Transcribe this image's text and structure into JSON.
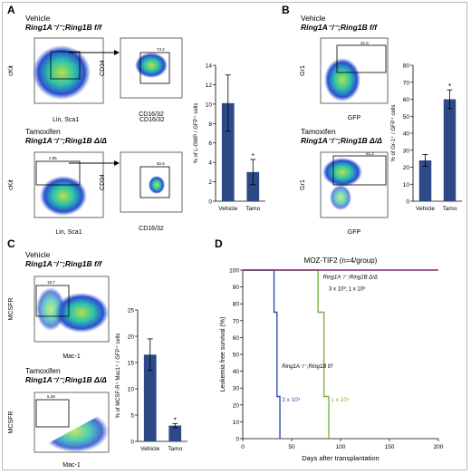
{
  "panel_labels": [
    "A",
    "B",
    "C",
    "D"
  ],
  "panel_a": {
    "vehicle": {
      "title": "Vehicle",
      "genotype": "Ring1A⁻/⁻;Ring1B f/f"
    },
    "tamoxifen": {
      "title": "Tamoxifen",
      "genotype": "Ring1A⁻/⁻;Ring1B Δ/Δ"
    },
    "flow_left": {
      "xlabel": "Lin, Sca1",
      "ylabel": "cKit"
    },
    "flow_right": {
      "xlabel": "CD16/32",
      "ylabel": "CD34"
    },
    "gate_vehicle": "74.2",
    "gate_tamo_left": "2.85",
    "gate_tamo_right": "82.6"
  },
  "panel_b": {
    "vehicle": {
      "title": "Vehicle",
      "genotype": "Ring1A⁻/⁻;Ring1B f/f"
    },
    "tamoxifen": {
      "title": "Tamoxifen",
      "genotype": "Ring1A⁻/⁻;Ring1B Δ/Δ"
    },
    "flow": {
      "xlabel": "GFP",
      "ylabel": "Gr1"
    },
    "gate_vehicle": "21.6",
    "gate_tamo": "61.2"
  },
  "panel_c": {
    "vehicle": {
      "title": "Vehicle",
      "genotype": "Ring1A⁻/⁻;Ring1B f/f"
    },
    "tamoxifen": {
      "title": "Tamoxifen",
      "genotype": "Ring1A⁻/⁻;Ring1B Δ/Δ"
    },
    "flow": {
      "xlabel": "Mac-1",
      "ylabel": "MCSFR"
    },
    "gate_vehicle": "18.7",
    "gate_tamo": "5.28"
  },
  "panel_d": {
    "title": "MOZ-TIF2 (n=4/group)",
    "annot_top": "Ring1A⁻/⁻;Ring1B Δ/Δ",
    "annot_top2": "3 x 10³; 1 x 10³",
    "annot_mid": "Ring1A⁻/⁻;Ring1B f/f",
    "annot_blue": "3 x 10³",
    "annot_green": "1 x 10³"
  },
  "colors": {
    "bar": "#2e4a86",
    "blue": "#2f4fb0",
    "green": "#7cb342",
    "purple": "#7b2a6f"
  },
  "chart_data": [
    {
      "type": "bar",
      "id": "A",
      "categories": [
        "Vehicle",
        "Tamo"
      ],
      "values": [
        10.1,
        3.0
      ],
      "errors": [
        2.9,
        1.3
      ],
      "ylabel": "% of L-GMP / GFP⁺ cells",
      "ylim": [
        0,
        14
      ],
      "yticks": [
        "0",
        "2",
        "4",
        "6",
        "8",
        "10",
        "12",
        "14"
      ],
      "significance": [
        null,
        "*"
      ]
    },
    {
      "type": "bar",
      "id": "B",
      "categories": [
        "Vehicle",
        "Tamo"
      ],
      "values": [
        24,
        60
      ],
      "errors": [
        3.5,
        5.5
      ],
      "ylabel": "% of Gr-1⁺ / GFP⁺ cells",
      "ylim": [
        0,
        80
      ],
      "yticks": [
        "0",
        "10",
        "20",
        "30",
        "40",
        "50",
        "60",
        "70",
        "80"
      ],
      "significance": [
        null,
        "*"
      ]
    },
    {
      "type": "bar",
      "id": "C",
      "categories": [
        "Vehicle",
        "Tamo"
      ],
      "values": [
        16.5,
        3.0
      ],
      "errors": [
        3.0,
        0.4
      ],
      "ylabel": "% of MCSF-R⁺ Mac1⁺ / GFP⁺ cells",
      "ylim": [
        0,
        25
      ],
      "yticks": [
        "0",
        "5",
        "10",
        "15",
        "20",
        "25"
      ],
      "significance": [
        null,
        "*"
      ]
    },
    {
      "type": "line",
      "id": "D",
      "title": "MOZ-TIF2 (n=4/group)",
      "xlabel": "Days after transplantation",
      "ylabel": "Leukemia free survival (%)",
      "xlim": [
        0,
        200
      ],
      "ylim": [
        0,
        100
      ],
      "xticks": [
        "0",
        "50",
        "100",
        "150",
        "200"
      ],
      "yticks": [
        "0",
        "10",
        "20",
        "30",
        "40",
        "50",
        "60",
        "70",
        "80",
        "90",
        "100"
      ],
      "series": [
        {
          "name": "",
          "color": "#2f4fb0",
          "x": [
            0,
            32,
            32,
            35,
            35,
            38,
            38
          ],
          "y": [
            100,
            100,
            75,
            75,
            25,
            25,
            0
          ]
        },
        {
          "name": "",
          "color": "#7cb342",
          "x": [
            0,
            77,
            77,
            83,
            83,
            88,
            88
          ],
          "y": [
            100,
            100,
            75,
            75,
            25,
            25,
            0
          ]
        },
        {
          "name": "",
          "color": "#7b2a6f",
          "x": [
            0,
            200
          ],
          "y": [
            100,
            100
          ]
        }
      ]
    }
  ]
}
